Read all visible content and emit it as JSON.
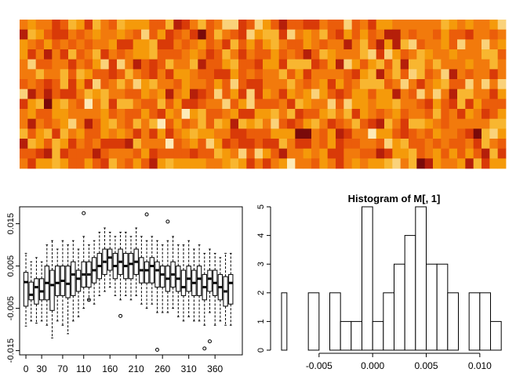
{
  "chart_data": [
    {
      "type": "heatmap",
      "title": "",
      "xlabel": "",
      "ylabel": "",
      "n_cols": 60,
      "n_rows": 15,
      "colormap": "heat",
      "palette": [
        "#7a0a0a",
        "#b51f0a",
        "#d93a08",
        "#eb5d0a",
        "#f27a0c",
        "#f59a0a",
        "#f8b630",
        "#fad27a",
        "#fdebb8"
      ],
      "seed": 1971
    },
    {
      "type": "boxplot",
      "title": "",
      "xlabel": "",
      "ylabel": "",
      "ylim": [
        -0.016,
        0.019
      ],
      "yticks": [
        -0.015,
        -0.005,
        0.005,
        0.015
      ],
      "ytick_labels": [
        "-0.015",
        "-0.005",
        "0.005",
        "0.015"
      ],
      "xlim": [
        -12,
        412
      ],
      "xticks": [
        0,
        30,
        70,
        110,
        160,
        210,
        260,
        310,
        360
      ],
      "xtick_labels": [
        "0",
        "30",
        "70",
        "110",
        "160",
        "210",
        "260",
        "310",
        "360"
      ],
      "box_spacing": 10,
      "boxes": [
        {
          "x": 0,
          "median": 0.0012,
          "q1": -0.0045,
          "q3": 0.0035,
          "whisker_low": -0.0092,
          "whisker_high": 0.008,
          "outliers": []
        },
        {
          "x": 10,
          "median": -0.0018,
          "q1": -0.003,
          "q3": 0.0012,
          "whisker_low": -0.008,
          "whisker_high": 0.006,
          "outliers": []
        },
        {
          "x": 20,
          "median": 0.0,
          "q1": -0.004,
          "q3": 0.002,
          "whisker_low": -0.0085,
          "whisker_high": 0.007,
          "outliers": []
        },
        {
          "x": 30,
          "median": -0.001,
          "q1": -0.003,
          "q3": 0.002,
          "whisker_low": -0.008,
          "whisker_high": 0.006,
          "outliers": []
        },
        {
          "x": 40,
          "median": 0.001,
          "q1": -0.003,
          "q3": 0.005,
          "whisker_low": -0.009,
          "whisker_high": 0.01,
          "outliers": []
        },
        {
          "x": 50,
          "median": 0.0005,
          "q1": -0.0055,
          "q3": 0.004,
          "whisker_low": -0.012,
          "whisker_high": 0.011,
          "outliers": []
        },
        {
          "x": 60,
          "median": 0.001,
          "q1": -0.002,
          "q3": 0.005,
          "whisker_low": -0.008,
          "whisker_high": 0.009,
          "outliers": []
        },
        {
          "x": 70,
          "median": 0.0015,
          "q1": -0.002,
          "q3": 0.005,
          "whisker_low": -0.009,
          "whisker_high": 0.011,
          "outliers": []
        },
        {
          "x": 80,
          "median": 0.0008,
          "q1": -0.0025,
          "q3": 0.005,
          "whisker_low": -0.011,
          "whisker_high": 0.01,
          "outliers": []
        },
        {
          "x": 90,
          "median": 0.003,
          "q1": -0.002,
          "q3": 0.006,
          "whisker_low": -0.008,
          "whisker_high": 0.011,
          "outliers": []
        },
        {
          "x": 100,
          "median": 0.002,
          "q1": -0.001,
          "q3": 0.004,
          "whisker_low": -0.007,
          "whisker_high": 0.009,
          "outliers": []
        },
        {
          "x": 110,
          "median": 0.003,
          "q1": 0.0,
          "q3": 0.006,
          "whisker_low": -0.005,
          "whisker_high": 0.012,
          "outliers": [
            0.0175
          ]
        },
        {
          "x": 120,
          "median": 0.003,
          "q1": 0.0,
          "q3": 0.006,
          "whisker_low": -0.003,
          "whisker_high": 0.01,
          "outliers": [
            -0.003
          ]
        },
        {
          "x": 130,
          "median": 0.004,
          "q1": 0.001,
          "q3": 0.007,
          "whisker_low": -0.004,
          "whisker_high": 0.011,
          "outliers": []
        },
        {
          "x": 140,
          "median": 0.005,
          "q1": 0.002,
          "q3": 0.008,
          "whisker_low": -0.002,
          "whisker_high": 0.013,
          "outliers": []
        },
        {
          "x": 150,
          "median": 0.006,
          "q1": 0.003,
          "q3": 0.009,
          "whisker_low": -0.001,
          "whisker_high": 0.014,
          "outliers": []
        },
        {
          "x": 160,
          "median": 0.007,
          "q1": 0.004,
          "q3": 0.009,
          "whisker_low": 0.0,
          "whisker_high": 0.013,
          "outliers": []
        },
        {
          "x": 170,
          "median": 0.005,
          "q1": 0.002,
          "q3": 0.008,
          "whisker_low": -0.002,
          "whisker_high": 0.012,
          "outliers": []
        },
        {
          "x": 180,
          "median": 0.006,
          "q1": 0.003,
          "q3": 0.009,
          "whisker_low": -0.003,
          "whisker_high": 0.013,
          "outliers": [
            -0.0068
          ]
        },
        {
          "x": 190,
          "median": 0.005,
          "q1": 0.002,
          "q3": 0.008,
          "whisker_low": -0.002,
          "whisker_high": 0.013,
          "outliers": []
        },
        {
          "x": 200,
          "median": 0.0055,
          "q1": 0.002,
          "q3": 0.008,
          "whisker_low": -0.003,
          "whisker_high": 0.012,
          "outliers": []
        },
        {
          "x": 210,
          "median": 0.006,
          "q1": 0.003,
          "q3": 0.009,
          "whisker_low": -0.002,
          "whisker_high": 0.014,
          "outliers": []
        },
        {
          "x": 220,
          "median": 0.004,
          "q1": 0.001,
          "q3": 0.007,
          "whisker_low": -0.004,
          "whisker_high": 0.012,
          "outliers": []
        },
        {
          "x": 230,
          "median": 0.004,
          "q1": 0.001,
          "q3": 0.006,
          "whisker_low": -0.005,
          "whisker_high": 0.011,
          "outliers": [
            0.0172
          ]
        },
        {
          "x": 240,
          "median": 0.005,
          "q1": 0.001,
          "q3": 0.007,
          "whisker_low": -0.004,
          "whisker_high": 0.012,
          "outliers": []
        },
        {
          "x": 250,
          "median": 0.004,
          "q1": 0.0,
          "q3": 0.006,
          "whisker_low": -0.006,
          "whisker_high": 0.011,
          "outliers": [
            -0.0148
          ]
        },
        {
          "x": 260,
          "median": 0.003,
          "q1": 0.0,
          "q3": 0.005,
          "whisker_low": -0.006,
          "whisker_high": 0.01,
          "outliers": []
        },
        {
          "x": 270,
          "median": 0.002,
          "q1": -0.001,
          "q3": 0.005,
          "whisker_low": -0.006,
          "whisker_high": 0.011,
          "outliers": [
            0.0155
          ]
        },
        {
          "x": 280,
          "median": 0.003,
          "q1": 0.0,
          "q3": 0.006,
          "whisker_low": -0.005,
          "whisker_high": 0.012,
          "outliers": []
        },
        {
          "x": 290,
          "median": 0.002,
          "q1": -0.001,
          "q3": 0.005,
          "whisker_low": -0.007,
          "whisker_high": 0.01,
          "outliers": []
        },
        {
          "x": 300,
          "median": 0.0,
          "q1": -0.002,
          "q3": 0.004,
          "whisker_low": -0.008,
          "whisker_high": 0.01,
          "outliers": []
        },
        {
          "x": 310,
          "median": 0.002,
          "q1": -0.001,
          "q3": 0.005,
          "whisker_low": -0.007,
          "whisker_high": 0.011,
          "outliers": []
        },
        {
          "x": 320,
          "median": 0.001,
          "q1": -0.002,
          "q3": 0.004,
          "whisker_low": -0.008,
          "whisker_high": 0.009,
          "outliers": []
        },
        {
          "x": 330,
          "median": 0.002,
          "q1": -0.002,
          "q3": 0.005,
          "whisker_low": -0.008,
          "whisker_high": 0.01,
          "outliers": []
        },
        {
          "x": 340,
          "median": 0.0,
          "q1": -0.003,
          "q3": 0.003,
          "whisker_low": -0.009,
          "whisker_high": 0.008,
          "outliers": [
            -0.0145
          ]
        },
        {
          "x": 350,
          "median": 0.002,
          "q1": -0.001,
          "q3": 0.004,
          "whisker_low": -0.006,
          "whisker_high": 0.009,
          "outliers": [
            -0.0128
          ]
        },
        {
          "x": 360,
          "median": 0.001,
          "q1": -0.002,
          "q3": 0.004,
          "whisker_low": -0.009,
          "whisker_high": 0.008,
          "outliers": []
        },
        {
          "x": 370,
          "median": 0.0,
          "q1": -0.003,
          "q3": 0.003,
          "whisker_low": -0.008,
          "whisker_high": 0.007,
          "outliers": []
        },
        {
          "x": 380,
          "median": -0.001,
          "q1": -0.0045,
          "q3": 0.0025,
          "whisker_low": -0.009,
          "whisker_high": 0.008,
          "outliers": []
        },
        {
          "x": 390,
          "median": 0.001,
          "q1": -0.004,
          "q3": 0.003,
          "whisker_low": -0.009,
          "whisker_high": 0.008,
          "outliers": []
        }
      ]
    },
    {
      "type": "histogram",
      "title": "Histogram of M[, 1]",
      "xlabel": "",
      "ylabel": "",
      "xlim": [
        -0.0085,
        0.0125
      ],
      "ylim": [
        0,
        5
      ],
      "yticks": [
        0,
        1,
        2,
        3,
        4,
        5
      ],
      "ytick_labels": [
        "0",
        "1",
        "2",
        "3",
        "4",
        "5"
      ],
      "xticks": [
        -0.005,
        0.0,
        0.005,
        0.01
      ],
      "xtick_labels": [
        "-0.005",
        "0.000",
        "0.005",
        "0.010"
      ],
      "bins": [
        {
          "from": -0.009,
          "to": -0.008,
          "count": 2
        },
        {
          "from": -0.008,
          "to": -0.007,
          "count": 0
        },
        {
          "from": -0.007,
          "to": -0.006,
          "count": 0
        },
        {
          "from": -0.006,
          "to": -0.005,
          "count": 2
        },
        {
          "from": -0.005,
          "to": -0.004,
          "count": 0
        },
        {
          "from": -0.004,
          "to": -0.003,
          "count": 2
        },
        {
          "from": -0.003,
          "to": -0.002,
          "count": 1
        },
        {
          "from": -0.002,
          "to": -0.001,
          "count": 1
        },
        {
          "from": -0.001,
          "to": 0.0,
          "count": 5
        },
        {
          "from": 0.0,
          "to": 0.001,
          "count": 1
        },
        {
          "from": 0.001,
          "to": 0.002,
          "count": 2
        },
        {
          "from": 0.002,
          "to": 0.003,
          "count": 3
        },
        {
          "from": 0.003,
          "to": 0.004,
          "count": 4
        },
        {
          "from": 0.004,
          "to": 0.005,
          "count": 5
        },
        {
          "from": 0.005,
          "to": 0.006,
          "count": 3
        },
        {
          "from": 0.006,
          "to": 0.007,
          "count": 3
        },
        {
          "from": 0.007,
          "to": 0.008,
          "count": 2
        },
        {
          "from": 0.008,
          "to": 0.009,
          "count": 0
        },
        {
          "from": 0.009,
          "to": 0.01,
          "count": 2
        },
        {
          "from": 0.01,
          "to": 0.011,
          "count": 2
        },
        {
          "from": 0.011,
          "to": 0.012,
          "count": 1
        }
      ]
    }
  ]
}
